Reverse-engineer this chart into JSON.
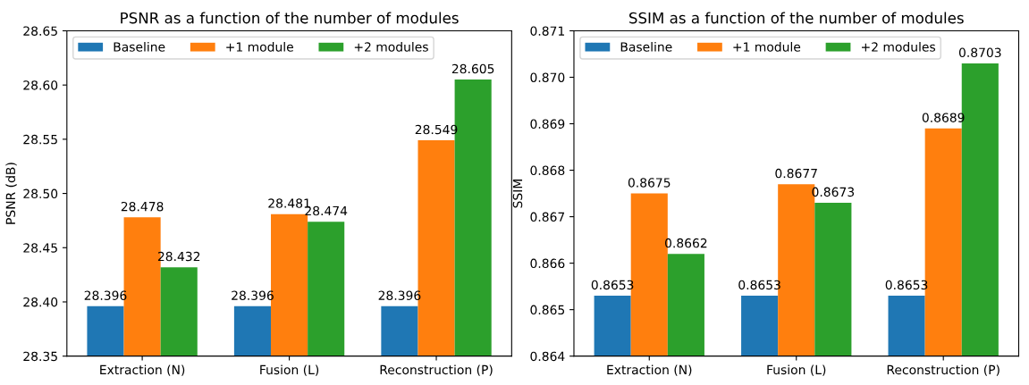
{
  "chart_data": [
    {
      "type": "bar",
      "title": "PSNR as a function of the number of modules",
      "ylabel": "PSNR (dB)",
      "categories": [
        "Extraction (N)",
        "Fusion (L)",
        "Reconstruction (P)"
      ],
      "series": [
        {
          "name": "Baseline",
          "color": "#1f77b4",
          "values": [
            28.396,
            28.396,
            28.396
          ]
        },
        {
          "name": "+1 module",
          "color": "#ff7f0e",
          "values": [
            28.478,
            28.481,
            28.549
          ]
        },
        {
          "name": "+2 modules",
          "color": "#2ca02c",
          "values": [
            28.432,
            28.474,
            28.605
          ]
        }
      ],
      "ylim": [
        28.35,
        28.65
      ],
      "yticks": [
        28.35,
        {
          "value": 28.4,
          "label": "28.40"
        },
        28.45,
        {
          "value": 28.5,
          "label": "28.50"
        },
        28.55,
        {
          "value": 28.6,
          "label": "28.60"
        },
        28.65
      ],
      "data_labels": true,
      "legend": "top left",
      "grid": false
    },
    {
      "type": "bar",
      "title": "SSIM as a function of the number of modules",
      "ylabel": "SSIM",
      "categories": [
        "Extraction (N)",
        "Fusion (L)",
        "Reconstruction (P)"
      ],
      "series": [
        {
          "name": "Baseline",
          "color": "#1f77b4",
          "values": [
            0.8653,
            0.8653,
            0.8653
          ]
        },
        {
          "name": "+1 module",
          "color": "#ff7f0e",
          "values": [
            0.8675,
            0.8677,
            0.8689
          ]
        },
        {
          "name": "+2 modules",
          "color": "#2ca02c",
          "values": [
            0.8662,
            0.8673,
            0.8703
          ]
        }
      ],
      "ylim": [
        0.864,
        0.871
      ],
      "yticks": [
        0.864,
        0.865,
        0.866,
        0.867,
        0.868,
        0.869,
        {
          "value": 0.87,
          "label": "0.870"
        },
        0.871
      ],
      "data_labels": true,
      "legend": "top left",
      "grid": false
    }
  ]
}
